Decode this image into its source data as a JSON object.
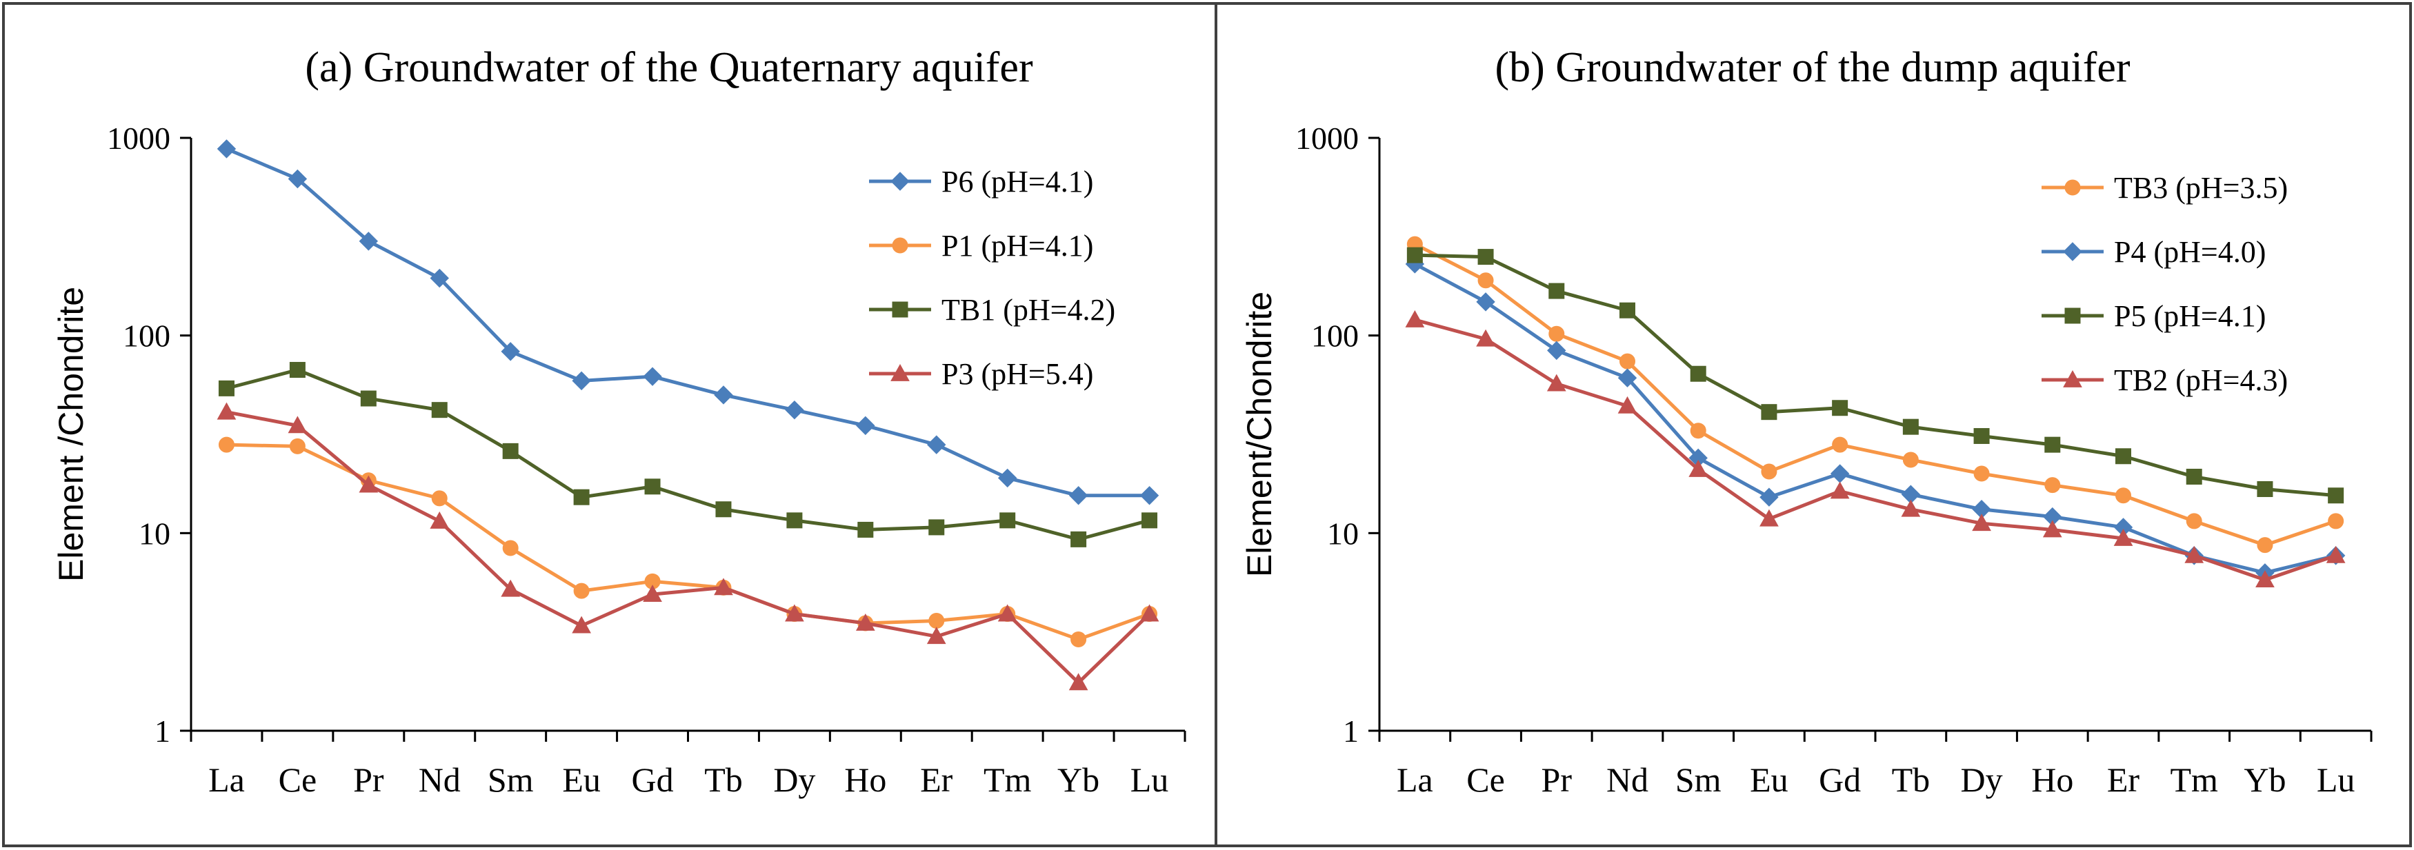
{
  "chart_data": [
    {
      "type": "line",
      "panel_key": "a",
      "title": "(a) Groundwater of the Quaternary aquifer",
      "xlabel": "",
      "ylabel": "Element /Chondrite",
      "yscale": "log",
      "ylim": [
        1,
        1000
      ],
      "yticks": [
        "1",
        "10",
        "100",
        "1000"
      ],
      "legend_position": "top-right",
      "categories": [
        "La",
        "Ce",
        "Pr",
        "Nd",
        "Sm",
        "Eu",
        "Gd",
        "Tb",
        "Dy",
        "Ho",
        "Er",
        "Tm",
        "Yb",
        "Lu"
      ],
      "series": [
        {
          "name": "P6 (pH=4.1)",
          "color": "#4a7ebb",
          "marker": "diamond",
          "values": [
            880,
            620,
            300,
            195,
            83,
            59,
            62,
            50,
            42,
            35,
            28,
            19,
            15.5,
            15.5
          ]
        },
        {
          "name": "P1 (pH=4.1)",
          "color": "#f79646",
          "marker": "circle",
          "values": [
            28,
            27.5,
            18.5,
            15,
            8.4,
            5.1,
            5.7,
            5.3,
            3.9,
            3.5,
            3.6,
            3.9,
            2.9,
            3.9
          ]
        },
        {
          "name": "TB1 (pH=4.2)",
          "color": "#4f6228",
          "marker": "square",
          "values": [
            54,
            67,
            48,
            42,
            26,
            15.2,
            17.2,
            13.2,
            11.6,
            10.4,
            10.7,
            11.6,
            9.3,
            11.6
          ]
        },
        {
          "name": "P3 (pH=5.4)",
          "color": "#c0504d",
          "marker": "triangle",
          "values": [
            41,
            35,
            17.5,
            11.5,
            5.2,
            3.4,
            4.9,
            5.3,
            3.9,
            3.5,
            3.0,
            3.9,
            1.75,
            3.9
          ]
        }
      ]
    },
    {
      "type": "line",
      "panel_key": "b",
      "title": "(b) Groundwater of the dump aquifer",
      "xlabel": "",
      "ylabel": "Element/Chondrite",
      "yscale": "log",
      "ylim": [
        1,
        1000
      ],
      "yticks": [
        "1",
        "10",
        "100",
        "1000"
      ],
      "legend_position": "top-right",
      "categories": [
        "La",
        "Ce",
        "Pr",
        "Nd",
        "Sm",
        "Eu",
        "Gd",
        "Tb",
        "Dy",
        "Ho",
        "Er",
        "Tm",
        "Yb",
        "Lu"
      ],
      "series": [
        {
          "name": "TB3 (pH=3.5)",
          "color": "#f79646",
          "marker": "circle",
          "values": [
            290,
            190,
            102,
            74,
            33,
            20.5,
            28,
            23.5,
            20,
            17.5,
            15.5,
            11.5,
            8.7,
            11.5
          ]
        },
        {
          "name": "P4 (pH=4.0)",
          "color": "#4a7ebb",
          "marker": "diamond",
          "values": [
            230,
            148,
            84,
            61,
            24,
            15.2,
            20,
            15.7,
            13.2,
            12.1,
            10.7,
            7.7,
            6.3,
            7.7
          ]
        },
        {
          "name": "P5 (pH=4.1)",
          "color": "#4f6228",
          "marker": "square",
          "values": [
            255,
            250,
            168,
            134,
            64,
            41,
            43,
            34.5,
            31,
            28,
            24.5,
            19.3,
            16.7,
            15.5
          ]
        },
        {
          "name": "TB2 (pH=4.3)",
          "color": "#c0504d",
          "marker": "triangle",
          "values": [
            120,
            96,
            57,
            44,
            21,
            11.8,
            16.3,
            13.2,
            11.2,
            10.4,
            9.4,
            7.7,
            5.8,
            7.7
          ]
        }
      ]
    }
  ]
}
